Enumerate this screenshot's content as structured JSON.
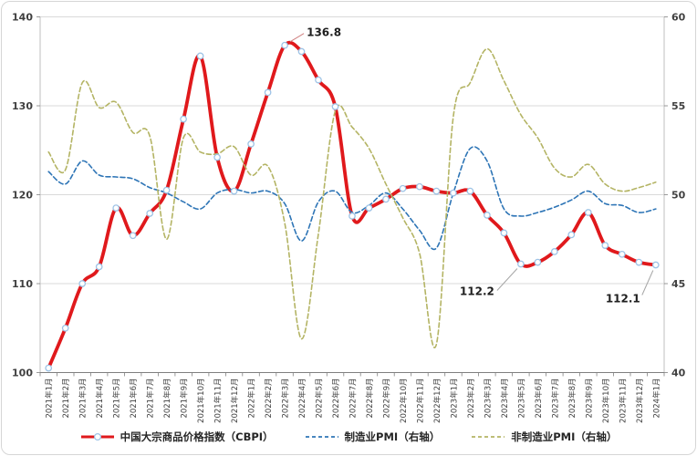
{
  "chart_data": {
    "type": "line",
    "title": "",
    "categories": [
      "2021年1月",
      "2021年2月",
      "2021年3月",
      "2021年4月",
      "2021年5月",
      "2021年6月",
      "2021年7月",
      "2021年8月",
      "2021年9月",
      "2021年10月",
      "2021年11月",
      "2021年12月",
      "2022年1月",
      "2022年2月",
      "2022年3月",
      "2022年4月",
      "2022年5月",
      "2022年6月",
      "2022年7月",
      "2022年8月",
      "2022年9月",
      "2022年10月",
      "2022年11月",
      "2022年12月",
      "2023年1月",
      "2023年2月",
      "2023年3月",
      "2023年4月",
      "2023年5月",
      "2023年6月",
      "2023年7月",
      "2023年8月",
      "2023年9月",
      "2023年10月",
      "2023年11月",
      "2023年12月",
      "2024年1月"
    ],
    "series": [
      {
        "name": "中国大宗商品价格指数（CBPI）",
        "axis": "left",
        "style": "solid",
        "color": "#e0191c",
        "marker": "circle",
        "marker_color": "#9dc3e6",
        "marker_fill": "#ffffff",
        "values": [
          100.5,
          105.0,
          110.0,
          111.9,
          118.5,
          115.4,
          117.9,
          120.5,
          128.5,
          135.6,
          124.2,
          120.4,
          125.7,
          131.5,
          136.8,
          136.1,
          132.9,
          129.9,
          117.6,
          118.5,
          119.5,
          120.7,
          120.9,
          120.4,
          120.2,
          120.4,
          117.7,
          115.7,
          112.2,
          112.4,
          113.6,
          115.5,
          118.0,
          114.3,
          113.3,
          112.4,
          112.1
        ]
      },
      {
        "name": "制造业PMI（右轴）",
        "axis": "right",
        "style": "dashed",
        "color": "#2e75b6",
        "values": [
          51.3,
          50.6,
          51.9,
          51.1,
          51.0,
          50.9,
          50.4,
          50.1,
          49.6,
          49.2,
          50.1,
          50.3,
          50.1,
          50.2,
          49.5,
          47.4,
          49.6,
          50.2,
          49.0,
          49.4,
          50.1,
          49.2,
          48.0,
          47.0,
          50.1,
          52.6,
          51.9,
          49.2,
          48.8,
          49.0,
          49.3,
          49.7,
          50.2,
          49.5,
          49.4,
          49.0,
          49.2
        ]
      },
      {
        "name": "非制造业PMI（右轴）",
        "axis": "right",
        "style": "dashed",
        "color": "#b4b464",
        "values": [
          52.4,
          51.4,
          56.3,
          54.9,
          55.2,
          53.5,
          53.3,
          47.5,
          53.2,
          52.4,
          52.3,
          52.7,
          51.1,
          51.6,
          48.4,
          41.9,
          47.8,
          54.7,
          53.8,
          52.6,
          50.6,
          48.7,
          46.7,
          41.6,
          54.4,
          56.3,
          58.2,
          56.4,
          54.5,
          53.2,
          51.5,
          51.0,
          51.7,
          50.6,
          50.2,
          50.4,
          50.7
        ]
      }
    ],
    "left_axis": {
      "min": 100,
      "max": 140,
      "ticks": [
        100,
        110,
        120,
        130,
        140
      ]
    },
    "right_axis": {
      "min": 40,
      "max": 60,
      "ticks": [
        40,
        45,
        50,
        55,
        60
      ]
    },
    "grid": true,
    "legend_position": "bottom",
    "annotations": [
      {
        "text": "136.8",
        "point": 14,
        "line_color": "#d08080"
      },
      {
        "text": "112.2",
        "point": 28,
        "line_color": "#a6a6a6"
      },
      {
        "text": "112.1",
        "point": 36,
        "line_color": "#a6a6a6"
      }
    ],
    "colors": {
      "grid": "#d9d9d9",
      "axis": "#808080",
      "plot_border": "#bfbfbf"
    }
  }
}
